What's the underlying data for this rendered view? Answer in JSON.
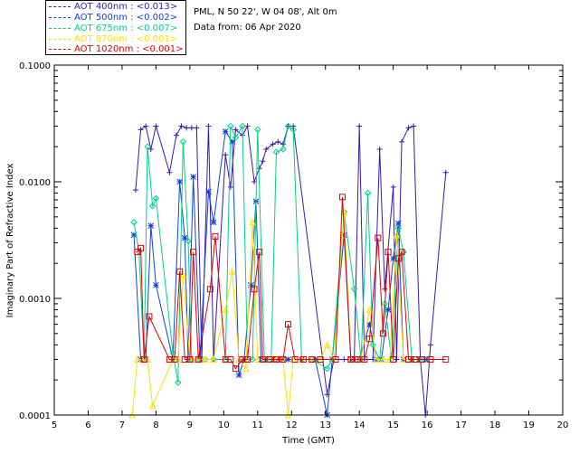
{
  "legend": [
    {
      "label": "AOT  400nm : <0.013>",
      "color": "#3a18b0"
    },
    {
      "label": "AOT  500nm : <0.002>",
      "color": "#1040e0"
    },
    {
      "label": "AOT  675nm : <0.007>",
      "color": "#00d08a"
    },
    {
      "label": "AOT  870nm : <0.001>",
      "color": "#ffe000"
    },
    {
      "label": "AOT 1020nm : <0.001>",
      "color": "#e00000"
    }
  ],
  "info": {
    "site": "PML, N 50 22', W 04 08', Alt 0m",
    "date": "Data from: 06 Apr 2020"
  },
  "chart_data": {
    "type": "line",
    "title": "",
    "xlabel": "Time (GMT)",
    "ylabel": "Imaginary Part of Refractive Index",
    "xlim": [
      5,
      20
    ],
    "ylim": [
      0.0001,
      0.1
    ],
    "yscale": "log",
    "xticks": [
      5,
      6,
      7,
      8,
      9,
      10,
      11,
      12,
      13,
      14,
      15,
      16,
      17,
      18,
      19,
      20
    ],
    "yticks": [
      {
        "value": 0.0001,
        "label": "0.0001"
      },
      {
        "value": 0.001,
        "label": "0.0010"
      },
      {
        "value": 0.01,
        "label": "0.0100"
      },
      {
        "value": 0.1,
        "label": "0.1000"
      }
    ],
    "series": [
      {
        "name": "AOT 400nm",
        "color": "#3a18b0",
        "marker": "plus",
        "x": [
          7.4,
          7.55,
          7.7,
          7.85,
          8.0,
          8.4,
          8.6,
          8.75,
          8.9,
          9.05,
          9.2,
          9.35,
          9.55,
          9.7,
          10.05,
          10.2,
          10.35,
          10.55,
          10.7,
          10.9,
          11.05,
          11.15,
          11.25,
          11.45,
          11.6,
          11.75,
          11.9,
          12.05,
          13.05,
          13.25,
          13.55,
          13.75,
          13.85,
          14.0,
          14.15,
          14.4,
          14.6,
          14.75,
          15.0,
          15.1,
          15.25,
          15.45,
          15.6,
          15.8,
          15.95,
          16.1,
          16.55
        ],
        "y": [
          0.0085,
          0.028,
          0.03,
          0.019,
          0.03,
          0.012,
          0.025,
          0.03,
          0.029,
          0.029,
          0.029,
          0.0003,
          0.03,
          0.0003,
          0.017,
          0.009,
          0.028,
          0.025,
          0.03,
          0.01,
          0.013,
          0.015,
          0.019,
          0.021,
          0.022,
          0.021,
          0.03,
          0.03,
          0.00015,
          0.0003,
          0.0003,
          0.0003,
          0.0003,
          0.03,
          0.0003,
          0.0003,
          0.019,
          0.0012,
          0.009,
          0.0003,
          0.022,
          0.029,
          0.03,
          0.0003,
          0.0001,
          0.0004,
          0.012
        ]
      },
      {
        "name": "AOT 500nm",
        "color": "#1040e0",
        "marker": "asterisk",
        "x": [
          7.35,
          7.55,
          7.7,
          7.85,
          8.0,
          8.5,
          8.7,
          8.85,
          8.95,
          9.1,
          9.3,
          9.55,
          9.7,
          10.05,
          10.25,
          10.45,
          10.6,
          10.8,
          10.95,
          11.1,
          11.25,
          11.45,
          11.6,
          11.75,
          11.9,
          12.3,
          12.7,
          13.05,
          13.2,
          13.55,
          13.75,
          14.0,
          14.3,
          14.5,
          14.65,
          14.85,
          15.0,
          15.15,
          15.3,
          15.55,
          15.75,
          15.95
        ],
        "y": [
          0.0035,
          0.0003,
          0.0003,
          0.0042,
          0.0013,
          0.0003,
          0.01,
          0.0033,
          0.0003,
          0.011,
          0.0003,
          0.0082,
          0.0045,
          0.027,
          0.022,
          0.00022,
          0.0003,
          0.0013,
          0.0068,
          0.0003,
          0.0003,
          0.0003,
          0.0003,
          0.0003,
          0.0003,
          0.0003,
          0.0003,
          0.0001,
          0.0003,
          0.0035,
          0.0003,
          0.0003,
          0.0006,
          0.0003,
          0.0003,
          0.0008,
          0.0022,
          0.0044,
          0.0003,
          0.0003,
          0.0003,
          0.0003
        ]
      },
      {
        "name": "AOT 675nm",
        "color": "#00d08a",
        "marker": "diamond",
        "x": [
          7.35,
          7.5,
          7.65,
          7.75,
          7.9,
          8.0,
          8.5,
          8.65,
          8.8,
          8.95,
          9.05,
          9.25,
          9.45,
          9.7,
          10.05,
          10.2,
          10.35,
          10.55,
          10.7,
          10.85,
          11.0,
          11.2,
          11.4,
          11.55,
          11.75,
          11.9,
          12.05,
          12.3,
          12.6,
          13.05,
          13.2,
          13.55,
          13.85,
          14.05,
          14.25,
          14.4,
          14.6,
          14.75,
          14.95,
          15.15,
          15.3,
          15.55,
          15.8,
          16.0
        ],
        "y": [
          0.0045,
          0.0025,
          0.0003,
          0.02,
          0.0062,
          0.0072,
          0.00034,
          0.00019,
          0.022,
          0.0031,
          0.0003,
          0.0003,
          0.0003,
          0.0003,
          0.0003,
          0.03,
          0.024,
          0.03,
          0.0003,
          0.0003,
          0.028,
          0.0003,
          0.0003,
          0.018,
          0.019,
          0.03,
          0.028,
          0.0003,
          0.0003,
          0.00025,
          0.0003,
          0.0055,
          0.0012,
          0.0003,
          0.008,
          0.0004,
          0.0003,
          0.0009,
          0.0003,
          0.004,
          0.0025,
          0.0003,
          0.0003,
          0.0003
        ]
      },
      {
        "name": "AOT 870nm",
        "color": "#ffe000",
        "marker": "triangle",
        "x": [
          7.3,
          7.45,
          7.6,
          7.75,
          7.9,
          8.5,
          8.65,
          8.8,
          9.0,
          9.2,
          9.45,
          9.7,
          10.05,
          10.25,
          10.45,
          10.65,
          10.85,
          11.0,
          11.2,
          11.4,
          11.55,
          11.75,
          11.9,
          12.05,
          12.3,
          12.6,
          12.85,
          13.05,
          13.25,
          13.55,
          13.75,
          14.05,
          14.3,
          14.5,
          14.7,
          14.9,
          15.1,
          15.3,
          15.5,
          15.75
        ],
        "y": [
          0.0001,
          0.0003,
          0.0003,
          0.0003,
          0.00012,
          0.0003,
          0.0003,
          0.0016,
          0.0003,
          0.0003,
          0.0003,
          0.0003,
          0.0008,
          0.0017,
          0.0003,
          0.00025,
          0.0045,
          0.0003,
          0.0003,
          0.0003,
          0.0003,
          0.0003,
          0.0001,
          0.0003,
          0.0003,
          0.0003,
          0.0003,
          0.0004,
          0.0003,
          0.0055,
          0.0003,
          0.0003,
          0.0008,
          0.0003,
          0.0003,
          0.0003,
          0.0035,
          0.0003,
          0.0003,
          0.0003
        ]
      },
      {
        "name": "AOT 1020nm",
        "color": "#e00000",
        "marker": "square",
        "x": [
          7.45,
          7.55,
          7.65,
          7.8,
          8.4,
          8.55,
          8.7,
          8.85,
          9.0,
          9.1,
          9.25,
          9.6,
          9.75,
          10.05,
          10.2,
          10.35,
          10.55,
          10.7,
          10.9,
          11.05,
          11.15,
          11.35,
          11.55,
          11.75,
          11.9,
          12.1,
          12.35,
          12.6,
          12.85,
          13.3,
          13.5,
          13.75,
          13.95,
          14.15,
          14.3,
          14.55,
          14.7,
          14.85,
          15.0,
          15.15,
          15.25,
          15.45,
          15.65,
          15.85,
          16.1,
          16.55
        ],
        "y": [
          0.0025,
          0.0027,
          0.0003,
          0.0007,
          0.0003,
          0.0003,
          0.0017,
          0.0003,
          0.0003,
          0.0025,
          0.0003,
          0.0012,
          0.0034,
          0.0003,
          0.0003,
          0.00025,
          0.0003,
          0.0003,
          0.0012,
          0.0025,
          0.0003,
          0.0003,
          0.0003,
          0.0003,
          0.0006,
          0.0003,
          0.0003,
          0.0003,
          0.0003,
          0.0003,
          0.0074,
          0.0003,
          0.0003,
          0.0003,
          0.00045,
          0.0033,
          0.0005,
          0.0025,
          0.0003,
          0.0022,
          0.0025,
          0.0003,
          0.0003,
          0.0003,
          0.0003,
          0.0003
        ]
      }
    ]
  }
}
